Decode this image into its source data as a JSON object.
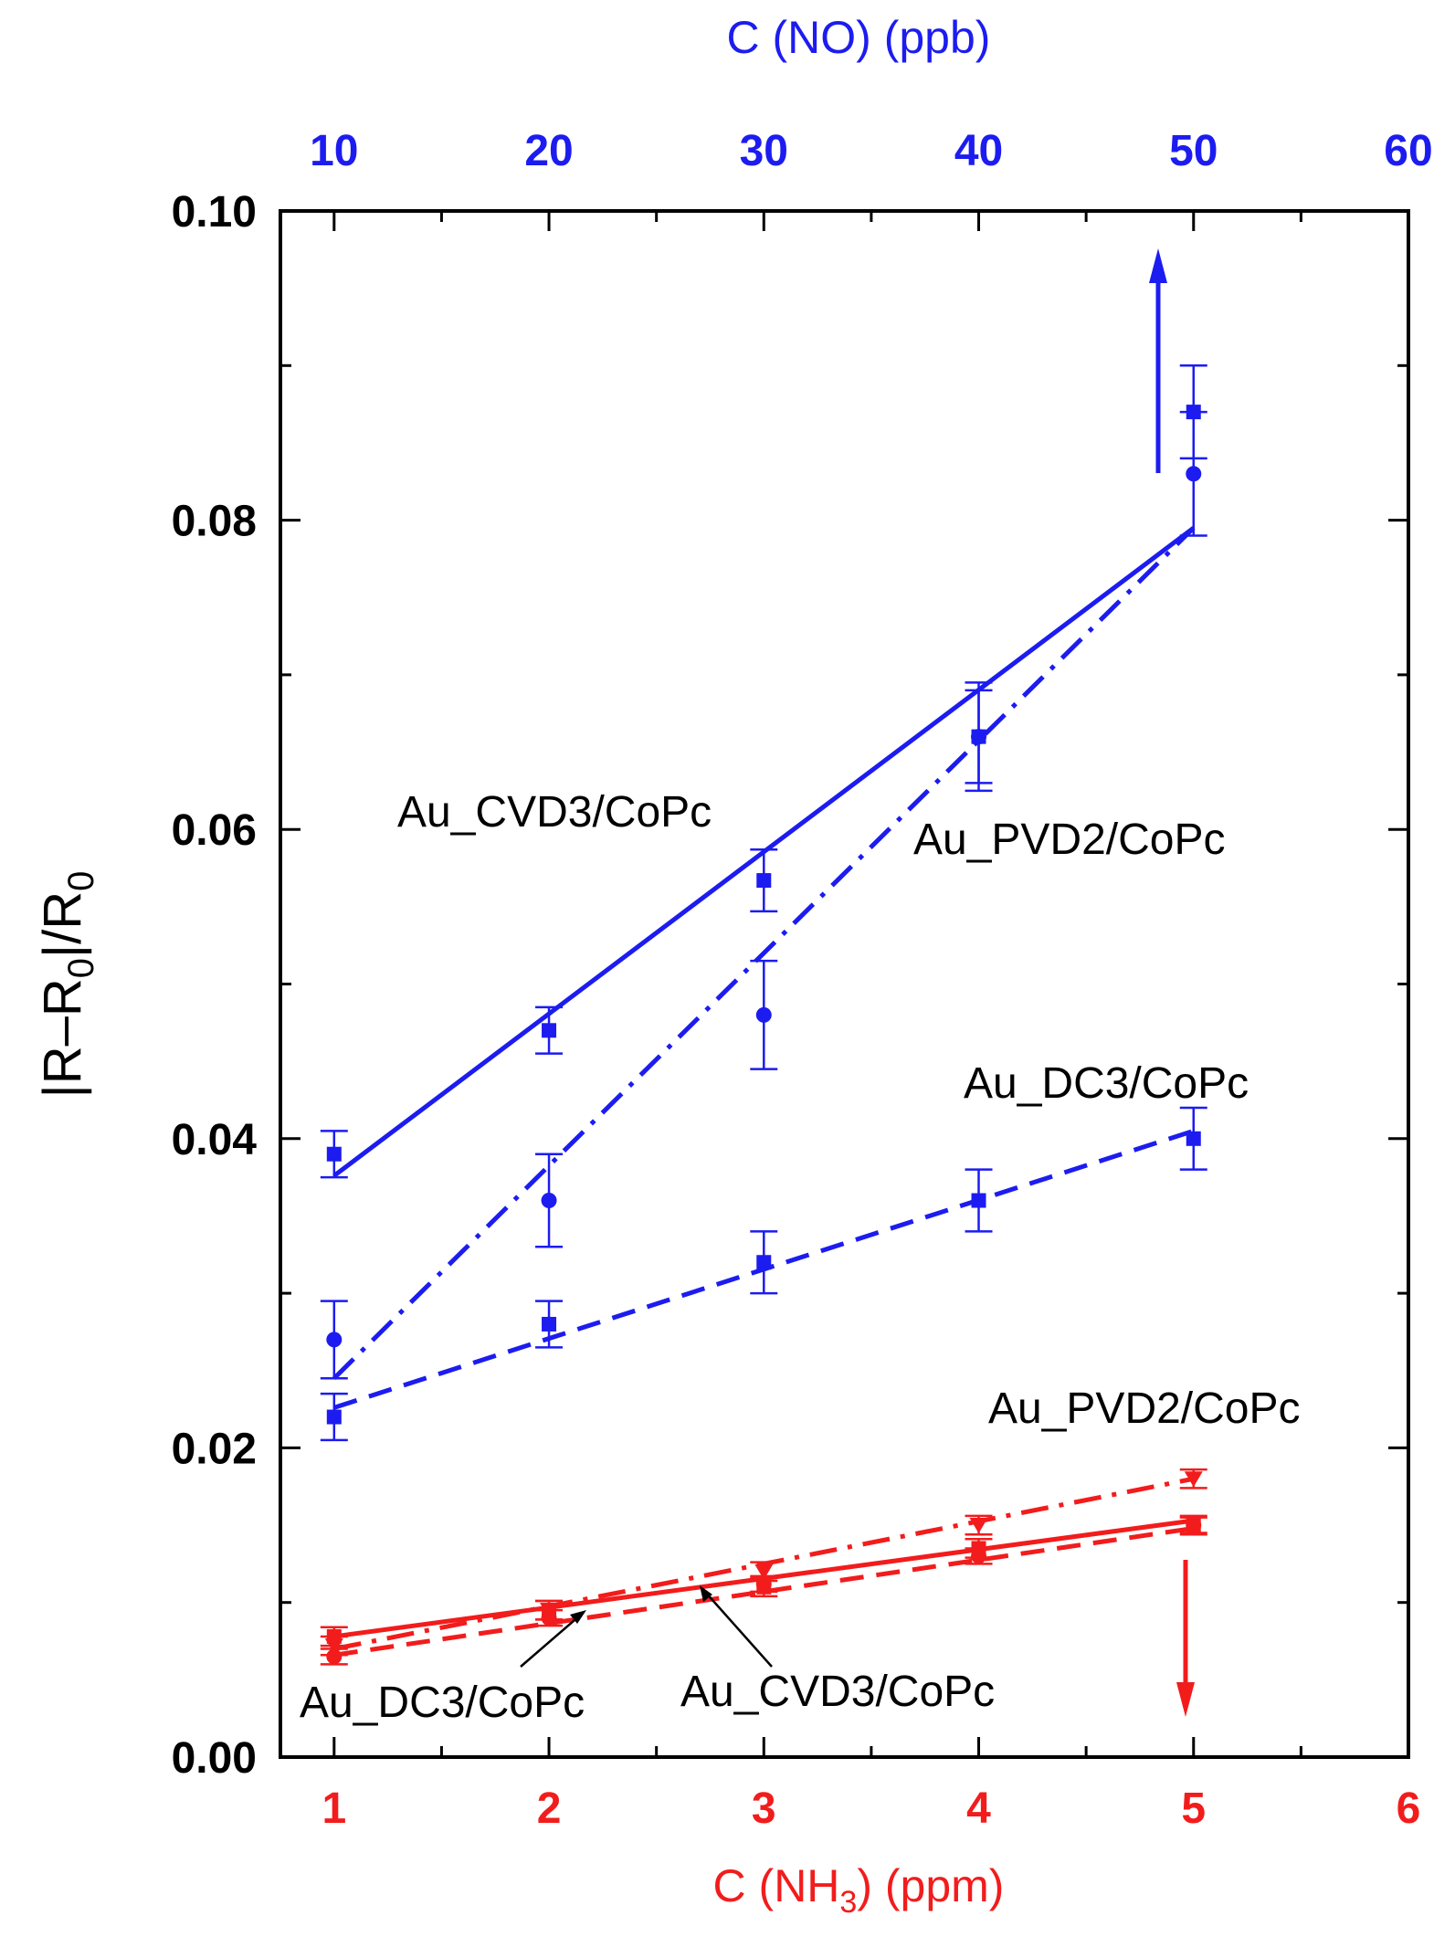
{
  "chart_data": {
    "type": "line",
    "ylabel": "|R–R0|/R0",
    "ylabel_parts": {
      "a": "|R–R",
      "sub1": "0",
      "b": "|/R",
      "sub2": "0"
    },
    "xlabel_bottom": "C (NH3) (ppm)",
    "xlabel_bottom_parts": {
      "a": "C (NH",
      "sub": "3",
      "b": ") (ppm)"
    },
    "xlabel_top": "C (NO) (ppb)",
    "x_bottom_range": [
      0.75,
      6
    ],
    "x_top_range": [
      7.5,
      60
    ],
    "ylim": [
      0,
      0.1
    ],
    "x_bottom_ticks": [
      "1",
      "2",
      "3",
      "4",
      "5",
      "6"
    ],
    "x_top_ticks": [
      "10",
      "20",
      "30",
      "40",
      "50",
      "60"
    ],
    "y_ticks": [
      "0.00",
      "0.02",
      "0.04",
      "0.06",
      "0.08",
      "0.10"
    ],
    "colors": {
      "no2_series": "#1c1cf0",
      "nh3_series": "#f21c1c",
      "axes": "#000000"
    },
    "series": [
      {
        "name": "Au_CVD3/CoPc (NO)",
        "axis": "top",
        "marker": "square",
        "line": "solid",
        "x": [
          10,
          20,
          30,
          40,
          50
        ],
        "y": [
          0.039,
          0.047,
          0.0567,
          0.066,
          0.087
        ],
        "err": [
          0.0015,
          0.0015,
          0.002,
          0.003,
          0.003
        ],
        "fit": [
          0.0376,
          0.0795
        ]
      },
      {
        "name": "Au_PVD2/CoPc (NO)",
        "axis": "top",
        "marker": "circle",
        "line": "dashdot",
        "x": [
          10,
          20,
          30,
          40,
          50
        ],
        "y": [
          0.027,
          0.036,
          0.048,
          0.066,
          0.083
        ],
        "err": [
          0.0025,
          0.003,
          0.0035,
          0.0035,
          0.004
        ],
        "fit": [
          0.0245,
          0.0795
        ]
      },
      {
        "name": "Au_DC3/CoPc (NO)",
        "axis": "top",
        "marker": "square",
        "line": "dashed",
        "x": [
          10,
          20,
          30,
          40,
          50
        ],
        "y": [
          0.022,
          0.028,
          0.032,
          0.036,
          0.04
        ],
        "err": [
          0.0015,
          0.0015,
          0.002,
          0.002,
          0.002
        ],
        "fit": [
          0.0226,
          0.0405
        ]
      },
      {
        "name": "Au_CVD3/CoPc (NH3)",
        "axis": "bottom",
        "marker": "square",
        "line": "solid",
        "x": [
          1,
          2,
          3,
          4,
          5
        ],
        "y": [
          0.0078,
          0.0095,
          0.011,
          0.0135,
          0.015
        ],
        "err": [
          0.0006,
          0.0006,
          0.0006,
          0.0006,
          0.0006
        ],
        "fit": [
          0.0078,
          0.0153
        ]
      },
      {
        "name": "Au_PVD2/CoPc (NH3)",
        "axis": "bottom",
        "marker": "triangle-down",
        "line": "dashdot",
        "x": [
          1,
          2,
          3,
          4,
          5
        ],
        "y": [
          0.0072,
          0.0095,
          0.012,
          0.015,
          0.018
        ],
        "err": [
          0.0006,
          0.0006,
          0.0006,
          0.0006,
          0.0006
        ],
        "fit": [
          0.007,
          0.018
        ]
      },
      {
        "name": "Au_DC3/CoPc (NH3)",
        "axis": "bottom",
        "marker": "circle",
        "line": "dashed",
        "x": [
          1,
          2,
          3,
          4,
          5
        ],
        "y": [
          0.0065,
          0.009,
          0.0112,
          0.013,
          0.015
        ],
        "err": [
          0.0005,
          0.0005,
          0.0005,
          0.0005,
          0.0005
        ],
        "fit": [
          0.0066,
          0.0148
        ]
      }
    ],
    "annotations": [
      {
        "text": "Au_CVD3/CoPc",
        "color": "#000000"
      },
      {
        "text": "Au_PVD2/CoPc",
        "color": "#000000"
      },
      {
        "text": "Au_DC3/CoPc",
        "color": "#000000"
      },
      {
        "text": "Au_PVD2/CoPc",
        "color": "#000000"
      },
      {
        "text": "Au_DC3/CoPc",
        "color": "#000000"
      },
      {
        "text": "Au_CVD3/CoPc",
        "color": "#000000"
      }
    ]
  }
}
